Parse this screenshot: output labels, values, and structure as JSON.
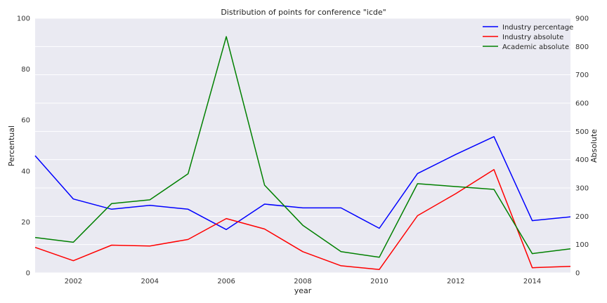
{
  "chart_data": {
    "type": "line",
    "title": "Distribution of points for conference \"icde\"",
    "xlabel": "year",
    "ylabel": "Percentual",
    "ylabel_right": "Absolute",
    "x": [
      2001,
      2002,
      2003,
      2004,
      2005,
      2006,
      2007,
      2008,
      2009,
      2010,
      2011,
      2012,
      2013,
      2014,
      2015
    ],
    "xlim": [
      2001,
      2015
    ],
    "xticks": [
      "2002",
      "2004",
      "2006",
      "2008",
      "2010",
      "2012",
      "2014"
    ],
    "ylim": [
      0,
      100
    ],
    "yticks": [
      "0",
      "20",
      "40",
      "60",
      "80",
      "100"
    ],
    "ylim_right": [
      0,
      900
    ],
    "yticks_right": [
      "0",
      "100",
      "200",
      "300",
      "400",
      "500",
      "600",
      "700",
      "800",
      "900"
    ],
    "grid": true,
    "background": "#eaeaf2",
    "legend_position": "top-right",
    "series": [
      {
        "name": "Industry percentage",
        "axis": "left",
        "color": "#0000ff",
        "values": [
          46,
          29,
          25,
          26.5,
          25,
          17,
          27,
          25.5,
          25.5,
          17.5,
          39,
          46.5,
          53.5,
          20.5,
          22
        ]
      },
      {
        "name": "Industry absolute",
        "axis": "right",
        "color": "#ff0000",
        "values": [
          90,
          43,
          98,
          95,
          118,
          192,
          155,
          75,
          25,
          12,
          202,
          280,
          365,
          18,
          23
        ]
      },
      {
        "name": "Academic absolute",
        "axis": "right",
        "color": "#008000",
        "values": [
          125,
          108,
          245,
          258,
          350,
          835,
          310,
          168,
          75,
          55,
          315,
          305,
          295,
          68,
          85
        ]
      }
    ]
  }
}
